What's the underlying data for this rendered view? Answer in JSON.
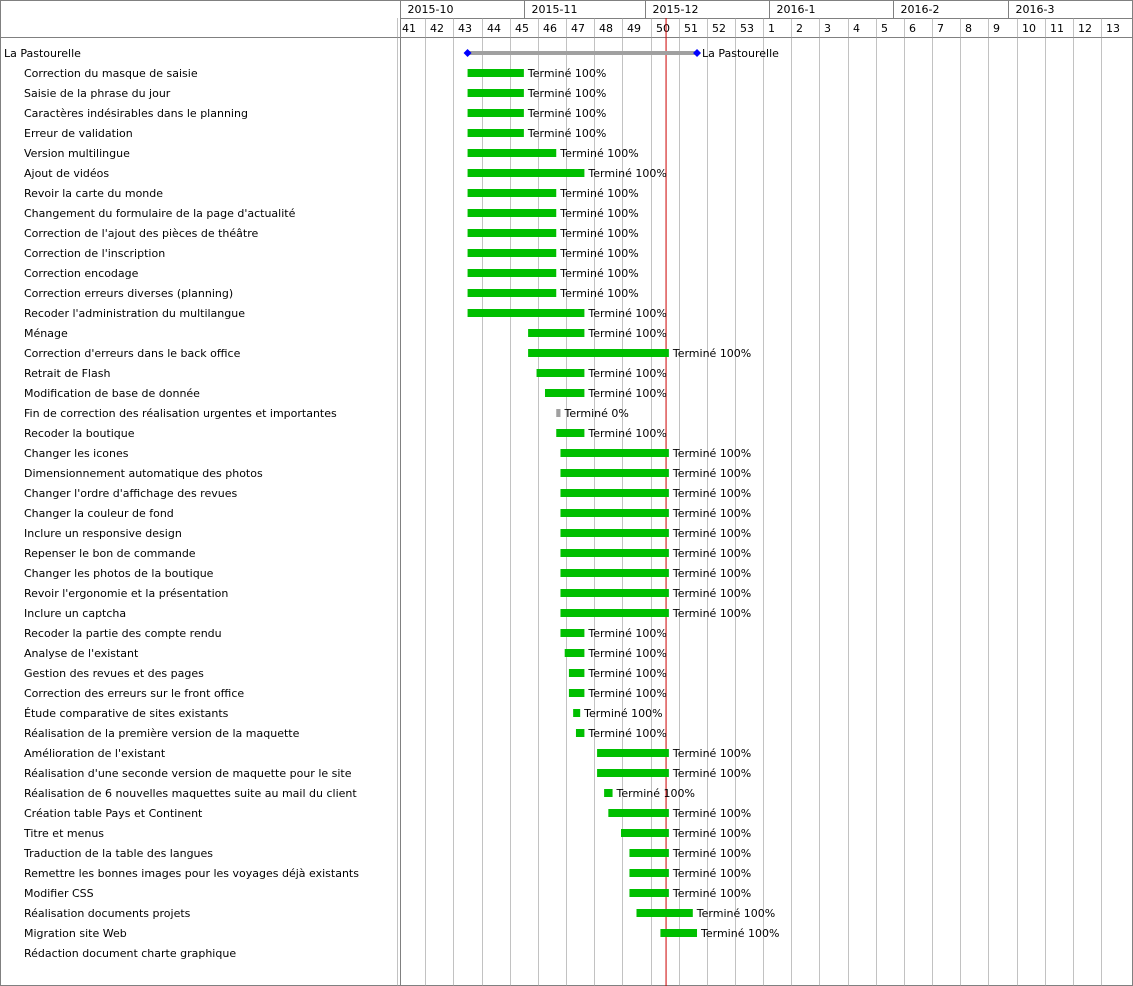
{
  "colors": {
    "done": "#00bf00",
    "pending": "#a0a0a0",
    "summary": "#a0a0a0",
    "milestone": "#0000ff",
    "today": "#cc0000",
    "grid": "#9a9a9a"
  },
  "chart_data": {
    "type": "gantt",
    "week_range": [
      40.6,
      66.6
    ],
    "today_week": 50.05,
    "months": [
      {
        "label": "2015-10",
        "start_week": 40.6
      },
      {
        "label": "2015-11",
        "start_week": 45.0
      },
      {
        "label": "2015-12",
        "start_week": 49.3
      },
      {
        "label": "2016-1",
        "start_week": 53.7
      },
      {
        "label": "2016-2",
        "start_week": 58.1
      },
      {
        "label": "2016-3",
        "start_week": 62.2
      }
    ],
    "weeks": [
      {
        "label": "41",
        "pos": 41
      },
      {
        "label": "42",
        "pos": 42
      },
      {
        "label": "43",
        "pos": 43
      },
      {
        "label": "44",
        "pos": 44
      },
      {
        "label": "45",
        "pos": 45
      },
      {
        "label": "46",
        "pos": 46
      },
      {
        "label": "47",
        "pos": 47
      },
      {
        "label": "48",
        "pos": 48
      },
      {
        "label": "49",
        "pos": 49
      },
      {
        "label": "50",
        "pos": 50
      },
      {
        "label": "51",
        "pos": 51
      },
      {
        "label": "52",
        "pos": 52
      },
      {
        "label": "53",
        "pos": 53
      },
      {
        "label": "1",
        "pos": 54
      },
      {
        "label": "2",
        "pos": 55
      },
      {
        "label": "3",
        "pos": 56
      },
      {
        "label": "4",
        "pos": 57
      },
      {
        "label": "5",
        "pos": 58
      },
      {
        "label": "6",
        "pos": 59
      },
      {
        "label": "7",
        "pos": 60
      },
      {
        "label": "8",
        "pos": 61
      },
      {
        "label": "9",
        "pos": 62
      },
      {
        "label": "10",
        "pos": 63
      },
      {
        "label": "11",
        "pos": 64
      },
      {
        "label": "12",
        "pos": 65
      },
      {
        "label": "13",
        "pos": 66
      }
    ],
    "summary": {
      "name": "La Pastourelle",
      "start": 43.0,
      "end": 51.15,
      "label": "La Pastourelle"
    },
    "tasks": [
      {
        "name": "Correction du masque de saisie",
        "start": 43.0,
        "end": 45.0,
        "status": "Terminé 100%",
        "done": true
      },
      {
        "name": "Saisie de la phrase du jour",
        "start": 43.0,
        "end": 45.0,
        "status": "Terminé 100%",
        "done": true
      },
      {
        "name": "Caractères indésirables dans le planning",
        "start": 43.0,
        "end": 45.0,
        "status": "Terminé 100%",
        "done": true
      },
      {
        "name": "Erreur de validation",
        "start": 43.0,
        "end": 45.0,
        "status": "Terminé 100%",
        "done": true
      },
      {
        "name": "Version multilingue",
        "start": 43.0,
        "end": 46.15,
        "status": "Terminé 100%",
        "done": true
      },
      {
        "name": "Ajout de vidéos",
        "start": 43.0,
        "end": 47.15,
        "status": "Terminé 100%",
        "done": true
      },
      {
        "name": "Revoir la carte du monde",
        "start": 43.0,
        "end": 46.15,
        "status": "Terminé 100%",
        "done": true
      },
      {
        "name": "Changement du formulaire de la page d'actualité",
        "start": 43.0,
        "end": 46.15,
        "status": "Terminé 100%",
        "done": true
      },
      {
        "name": "Correction de l'ajout des pièces de théâtre",
        "start": 43.0,
        "end": 46.15,
        "status": "Terminé 100%",
        "done": true
      },
      {
        "name": "Correction de l'inscription",
        "start": 43.0,
        "end": 46.15,
        "status": "Terminé 100%",
        "done": true
      },
      {
        "name": "Correction encodage",
        "start": 43.0,
        "end": 46.15,
        "status": "Terminé 100%",
        "done": true
      },
      {
        "name": "Correction erreurs diverses (planning)",
        "start": 43.0,
        "end": 46.15,
        "status": "Terminé 100%",
        "done": true
      },
      {
        "name": "Recoder l'administration du multilangue",
        "start": 43.0,
        "end": 47.15,
        "status": "Terminé 100%",
        "done": true
      },
      {
        "name": "Ménage",
        "start": 45.15,
        "end": 47.15,
        "status": "Terminé 100%",
        "done": true
      },
      {
        "name": "Correction d'erreurs dans le back office",
        "start": 45.15,
        "end": 50.15,
        "status": "Terminé 100%",
        "done": true
      },
      {
        "name": "Retrait de Flash",
        "start": 45.45,
        "end": 47.15,
        "status": "Terminé 100%",
        "done": true
      },
      {
        "name": "Modification de base de donnée",
        "start": 45.75,
        "end": 47.15,
        "status": "Terminé 100%",
        "done": true
      },
      {
        "name": "Fin de correction des réalisation urgentes et importantes",
        "start": 46.15,
        "end": 46.3,
        "status": "Terminé 0%",
        "done": false
      },
      {
        "name": "Recoder la boutique",
        "start": 46.15,
        "end": 47.15,
        "status": "Terminé 100%",
        "done": true
      },
      {
        "name": "Changer les icones",
        "start": 46.3,
        "end": 50.15,
        "status": "Terminé 100%",
        "done": true
      },
      {
        "name": "Dimensionnement automatique des photos",
        "start": 46.3,
        "end": 50.15,
        "status": "Terminé 100%",
        "done": true
      },
      {
        "name": "Changer l'ordre d'affichage des revues",
        "start": 46.3,
        "end": 50.15,
        "status": "Terminé 100%",
        "done": true
      },
      {
        "name": "Changer la couleur de fond",
        "start": 46.3,
        "end": 50.15,
        "status": "Terminé 100%",
        "done": true
      },
      {
        "name": "Inclure un responsive design",
        "start": 46.3,
        "end": 50.15,
        "status": "Terminé 100%",
        "done": true
      },
      {
        "name": "Repenser le bon de commande",
        "start": 46.3,
        "end": 50.15,
        "status": "Terminé 100%",
        "done": true
      },
      {
        "name": "Changer les photos de la boutique",
        "start": 46.3,
        "end": 50.15,
        "status": "Terminé 100%",
        "done": true
      },
      {
        "name": "Revoir l'ergonomie et la présentation",
        "start": 46.3,
        "end": 50.15,
        "status": "Terminé 100%",
        "done": true
      },
      {
        "name": "Inclure un captcha",
        "start": 46.3,
        "end": 50.15,
        "status": "Terminé 100%",
        "done": true
      },
      {
        "name": "Recoder la partie des compte rendu",
        "start": 46.3,
        "end": 47.15,
        "status": "Terminé 100%",
        "done": true
      },
      {
        "name": "Analyse de l'existant",
        "start": 46.45,
        "end": 47.15,
        "status": "Terminé 100%",
        "done": true
      },
      {
        "name": "Gestion des revues et des pages",
        "start": 46.6,
        "end": 47.15,
        "status": "Terminé 100%",
        "done": true
      },
      {
        "name": "Correction des erreurs sur le front office",
        "start": 46.6,
        "end": 47.15,
        "status": "Terminé 100%",
        "done": true
      },
      {
        "name": "Étude comparative de sites existants",
        "start": 46.75,
        "end": 47.0,
        "status": "Terminé 100%",
        "done": true
      },
      {
        "name": "Réalisation de la première version de la maquette",
        "start": 46.85,
        "end": 47.15,
        "status": "Terminé 100%",
        "done": true
      },
      {
        "name": "Amélioration de l'existant",
        "start": 47.6,
        "end": 50.15,
        "status": "Terminé 100%",
        "done": true
      },
      {
        "name": "Réalisation d'une seconde version de maquette pour le site",
        "start": 47.6,
        "end": 50.15,
        "status": "Terminé 100%",
        "done": true
      },
      {
        "name": "Réalisation de 6 nouvelles maquettes suite au mail du client",
        "start": 47.85,
        "end": 48.15,
        "status": "Terminé 100%",
        "done": true
      },
      {
        "name": "Création table Pays et Continent",
        "start": 48.0,
        "end": 50.15,
        "status": "Terminé 100%",
        "done": true
      },
      {
        "name": "Titre et menus",
        "start": 48.45,
        "end": 50.15,
        "status": "Terminé 100%",
        "done": true
      },
      {
        "name": "Traduction de la table des langues",
        "start": 48.75,
        "end": 50.15,
        "status": "Terminé 100%",
        "done": true
      },
      {
        "name": "Remettre les bonnes images pour les voyages déjà existants",
        "start": 48.75,
        "end": 50.15,
        "status": "Terminé 100%",
        "done": true
      },
      {
        "name": "Modifier CSS",
        "start": 48.75,
        "end": 50.15,
        "status": "Terminé 100%",
        "done": true
      },
      {
        "name": "Réalisation documents projets",
        "start": 49.0,
        "end": 51.0,
        "status": "Terminé 100%",
        "done": true
      },
      {
        "name": "Migration site Web",
        "start": 49.85,
        "end": 51.15,
        "status": "Terminé 100%",
        "done": true
      },
      {
        "name": "Rédaction document charte graphique",
        "start": null,
        "end": null,
        "status": "",
        "done": true
      }
    ]
  }
}
